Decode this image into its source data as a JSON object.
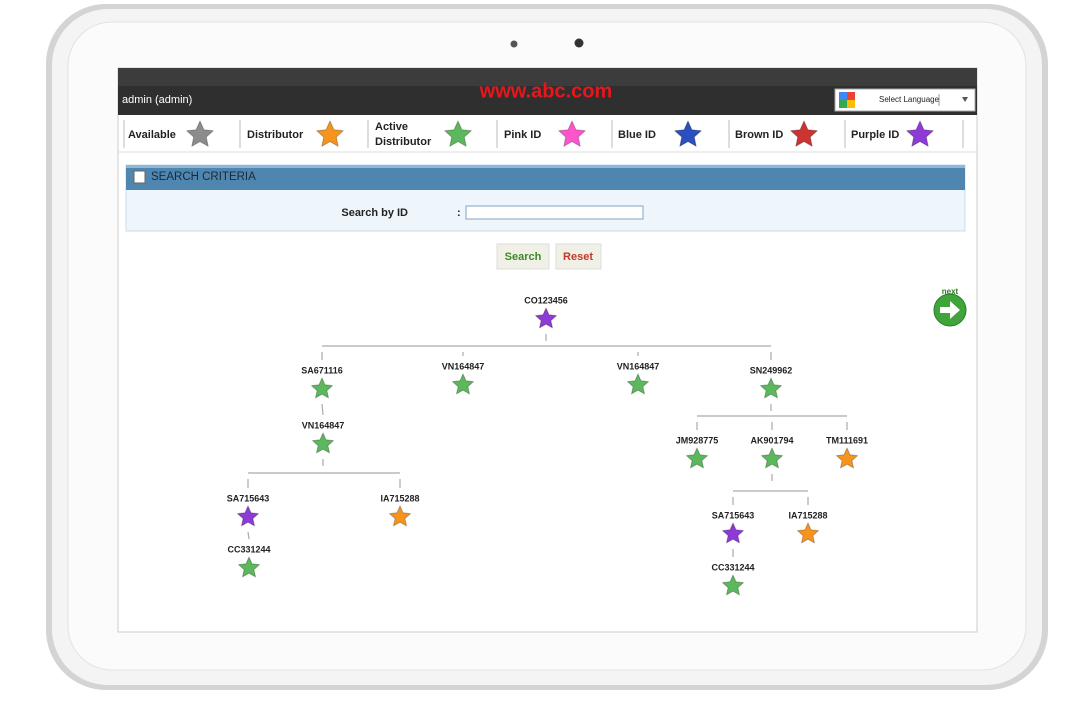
{
  "header": {
    "user": "admin (admin)",
    "site": "www.abc.com",
    "language": "Select Language"
  },
  "legend": [
    {
      "label": "Available",
      "color": "#8c8c8c"
    },
    {
      "label": "Distributor",
      "color": "#f7941d"
    },
    {
      "label": "Active Distributor",
      "color": "#5cb85c"
    },
    {
      "label": "Pink ID",
      "color": "#ff55cc"
    },
    {
      "label": "Blue ID",
      "color": "#2b4fbf"
    },
    {
      "label": "Brown ID",
      "color": "#cc3333"
    },
    {
      "label": "Purple ID",
      "color": "#8e3ad6"
    }
  ],
  "search": {
    "title": "SEARCH CRITERIA",
    "label": "Search by ID",
    "separator": ":",
    "buttons": [
      "Search",
      "Reset"
    ]
  },
  "next": "next",
  "tree": {
    "id": "CO123456",
    "color": "#8e3ad6",
    "children": [
      {
        "id": "SA671116",
        "color": "#5cb85c",
        "children": [
          {
            "id": "VN164847",
            "color": "#5cb85c",
            "children": [
              {
                "id": "SA715643",
                "color": "#8e3ad6",
                "children": [
                  {
                    "id": "CC331244",
                    "color": "#5cb85c",
                    "children": []
                  }
                ]
              },
              {
                "id": "IA715288",
                "color": "#f7941d",
                "children": []
              }
            ]
          }
        ]
      },
      {
        "id": "VN164847",
        "color": "#5cb85c",
        "children": []
      },
      {
        "id": "VN164847",
        "color": "#5cb85c",
        "children": []
      },
      {
        "id": "SN249962",
        "color": "#5cb85c",
        "children": [
          {
            "id": "JM928775",
            "color": "#5cb85c",
            "children": []
          },
          {
            "id": "AK901794",
            "color": "#5cb85c",
            "children": [
              {
                "id": "SA715643",
                "color": "#8e3ad6",
                "children": [
                  {
                    "id": "CC331244",
                    "color": "#5cb85c",
                    "children": []
                  }
                ]
              },
              {
                "id": "IA715288",
                "color": "#f7941d",
                "children": []
              }
            ]
          },
          {
            "id": "TM111691",
            "color": "#f7941d",
            "children": []
          }
        ]
      }
    ]
  }
}
